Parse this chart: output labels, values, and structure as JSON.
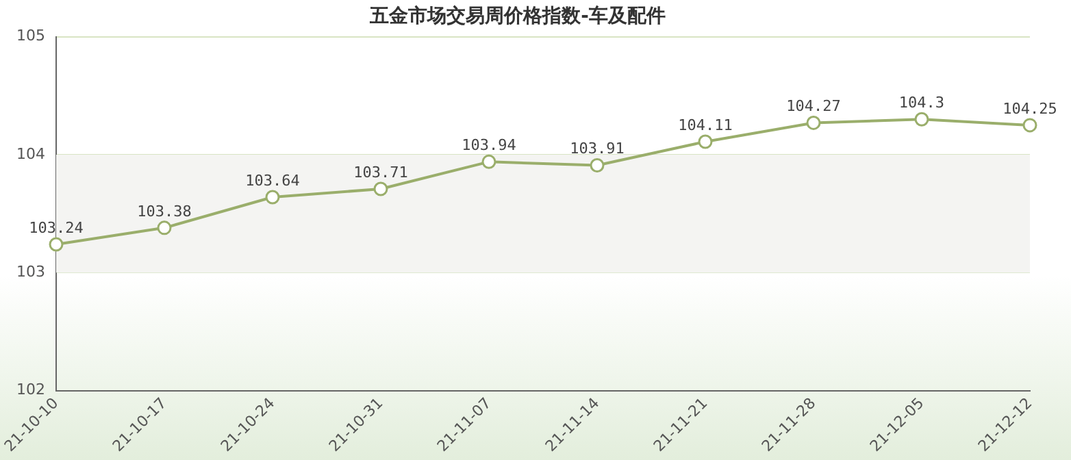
{
  "chart_data": {
    "type": "line",
    "title": "五金市场交易周价格指数-车及配件",
    "categories": [
      "21-10-10",
      "21-10-17",
      "21-10-24",
      "21-10-31",
      "21-11-07",
      "21-11-14",
      "21-11-21",
      "21-11-28",
      "21-12-05",
      "21-12-12"
    ],
    "series": [
      {
        "color": "#9aae6b",
        "values": [
          103.24,
          103.38,
          103.64,
          103.71,
          103.94,
          103.91,
          104.11,
          104.27,
          104.3,
          104.25
        ]
      }
    ],
    "ylim": [
      102,
      105
    ],
    "yticks": [
      102,
      103,
      104,
      105
    ],
    "bands": [
      {
        "axis": "y",
        "from": 103,
        "to": 104,
        "color": "#f4f4f2"
      }
    ],
    "grid": "y",
    "legend": false,
    "marker": "circle",
    "line_style": "solid",
    "data_labels": true
  }
}
